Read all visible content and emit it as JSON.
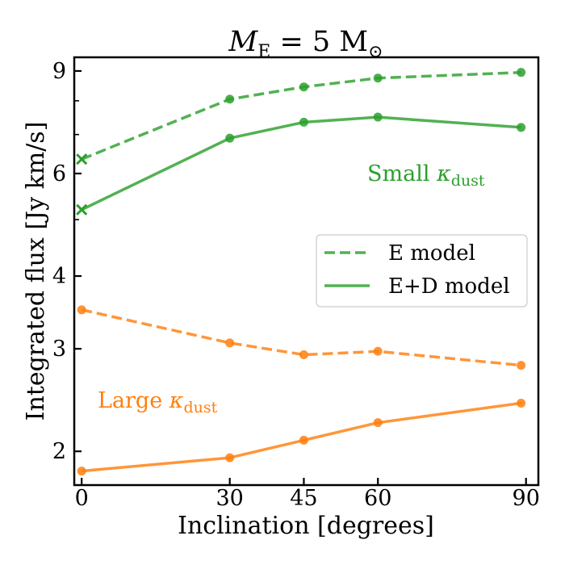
{
  "chart_data": {
    "type": "line",
    "title": {
      "main": "M",
      "sub": "E",
      "rest": " = 5 M",
      "sun_symbol": "⊙"
    },
    "xlabel": "Inclination [degrees]",
    "ylabel": "Integrated flux [Jy km/s]",
    "xlim": [
      -1.5,
      92.5
    ],
    "ylim": [
      1.75,
      9.5
    ],
    "yscale": "log",
    "x_ticks": [
      0,
      30,
      45,
      60,
      90
    ],
    "y_ticks_major": [
      2,
      3,
      4,
      6,
      9
    ],
    "y_ticks_minor": [
      5,
      7,
      8
    ],
    "x": [
      0,
      30,
      45,
      60,
      89
    ],
    "series": [
      {
        "name": "Small κdust, E model",
        "group": "small",
        "model": "E",
        "style": "dashed",
        "color": "#2ca02c",
        "values": [
          6.35,
          8.05,
          8.45,
          8.75,
          8.95
        ],
        "first_marker": "x"
      },
      {
        "name": "Small κdust, E+D model",
        "group": "small",
        "model": "E+D",
        "style": "solid",
        "color": "#2ca02c",
        "values": [
          5.2,
          6.9,
          7.35,
          7.5,
          7.2
        ],
        "first_marker": "x"
      },
      {
        "name": "Large κdust, E model",
        "group": "large",
        "model": "E",
        "style": "dashed",
        "color": "#ff7f0e",
        "values": [
          3.5,
          3.07,
          2.93,
          2.97,
          2.81
        ],
        "first_marker": "o"
      },
      {
        "name": "Large κdust, E+D model",
        "group": "large",
        "model": "E+D",
        "style": "solid",
        "color": "#ff7f0e",
        "values": [
          1.85,
          1.95,
          2.09,
          2.24,
          2.42
        ],
        "first_marker": "o"
      }
    ],
    "legend": {
      "placement": "center-right",
      "entries": [
        {
          "label": "E model",
          "style": "dashed",
          "color": "#2ca02c"
        },
        {
          "label": "E+D model",
          "style": "solid",
          "color": "#2ca02c"
        }
      ]
    },
    "annotations": [
      {
        "id": "small",
        "text": "Small ",
        "symbol": "κ",
        "sub": "dust",
        "color": "#2ca02c"
      },
      {
        "id": "large",
        "text": "Large ",
        "symbol": "κ",
        "sub": "dust",
        "color": "#ff7f0e"
      }
    ]
  }
}
